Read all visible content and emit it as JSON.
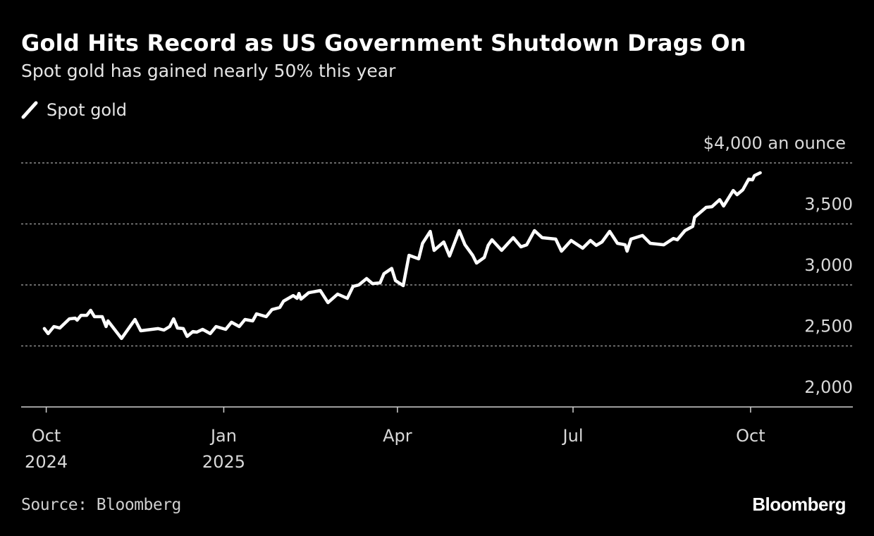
{
  "header": {
    "title": "Gold Hits Record as US Government Shutdown Drags On",
    "subtitle": "Spot gold has gained nearly 50% this year"
  },
  "footer": {
    "source": "Source: Bloomberg",
    "logo": "Bloomberg"
  },
  "colors": {
    "background": "#000000",
    "line": "#ffffff",
    "grid": "#8c8c8c",
    "text": "#d9d9d9"
  },
  "chart_data": {
    "type": "line",
    "title": "Gold Hits Record as US Government Shutdown Drags On",
    "subtitle": "Spot gold has gained nearly 50% this year",
    "xlabel": "",
    "ylabel": "",
    "y_unit_label": "$4,000 an ounce",
    "xlim": [
      "2024-09-18",
      "2025-11-23"
    ],
    "ylim": [
      2000,
      4000
    ],
    "grid": true,
    "legend": "top-left",
    "y_ticks": [
      {
        "value": 2000,
        "label": "2,000"
      },
      {
        "value": 2500,
        "label": "2,500"
      },
      {
        "value": 3000,
        "label": "3,000"
      },
      {
        "value": 3500,
        "label": "3,500"
      },
      {
        "value": 4000,
        "label": "$4,000 an ounce"
      }
    ],
    "x_ticks": [
      {
        "date": "2024-10-01",
        "label": "Oct",
        "sublabel": "2024"
      },
      {
        "date": "2025-01-01",
        "label": "Jan",
        "sublabel": "2025"
      },
      {
        "date": "2025-04-01",
        "label": "Apr",
        "sublabel": ""
      },
      {
        "date": "2025-07-01",
        "label": "Jul",
        "sublabel": ""
      },
      {
        "date": "2025-10-01",
        "label": "Oct",
        "sublabel": ""
      }
    ],
    "series": [
      {
        "name": "Spot gold",
        "points": [
          [
            "2024-09-30",
            2642
          ],
          [
            "2024-10-02",
            2601
          ],
          [
            "2024-10-05",
            2659
          ],
          [
            "2024-10-08",
            2647
          ],
          [
            "2024-10-13",
            2722
          ],
          [
            "2024-10-16",
            2728
          ],
          [
            "2024-10-17",
            2711
          ],
          [
            "2024-10-19",
            2751
          ],
          [
            "2024-10-22",
            2751
          ],
          [
            "2024-10-24",
            2792
          ],
          [
            "2024-10-26",
            2740
          ],
          [
            "2024-10-30",
            2740
          ],
          [
            "2024-11-01",
            2659
          ],
          [
            "2024-11-02",
            2705
          ],
          [
            "2024-11-09",
            2561
          ],
          [
            "2024-11-16",
            2717
          ],
          [
            "2024-11-19",
            2624
          ],
          [
            "2024-11-28",
            2642
          ],
          [
            "2024-12-01",
            2630
          ],
          [
            "2024-12-04",
            2659
          ],
          [
            "2024-12-06",
            2722
          ],
          [
            "2024-12-08",
            2647
          ],
          [
            "2024-12-11",
            2642
          ],
          [
            "2024-12-13",
            2578
          ],
          [
            "2024-12-16",
            2618
          ],
          [
            "2024-12-18",
            2613
          ],
          [
            "2024-12-21",
            2636
          ],
          [
            "2024-12-25",
            2601
          ],
          [
            "2024-12-28",
            2659
          ],
          [
            "2025-01-02",
            2636
          ],
          [
            "2025-01-05",
            2694
          ],
          [
            "2025-01-09",
            2659
          ],
          [
            "2025-01-12",
            2717
          ],
          [
            "2025-01-16",
            2705
          ],
          [
            "2025-01-18",
            2763
          ],
          [
            "2025-01-23",
            2740
          ],
          [
            "2025-01-26",
            2798
          ],
          [
            "2025-01-30",
            2815
          ],
          [
            "2025-02-01",
            2867
          ],
          [
            "2025-02-06",
            2913
          ],
          [
            "2025-02-08",
            2890
          ],
          [
            "2025-02-09",
            2930
          ],
          [
            "2025-02-10",
            2884
          ],
          [
            "2025-02-14",
            2936
          ],
          [
            "2025-02-20",
            2954
          ],
          [
            "2025-02-24",
            2855
          ],
          [
            "2025-03-01",
            2925
          ],
          [
            "2025-03-06",
            2890
          ],
          [
            "2025-03-09",
            2988
          ],
          [
            "2025-03-12",
            3000
          ],
          [
            "2025-03-16",
            3052
          ],
          [
            "2025-03-19",
            3011
          ],
          [
            "2025-03-23",
            3017
          ],
          [
            "2025-03-25",
            3092
          ],
          [
            "2025-03-29",
            3135
          ],
          [
            "2025-03-31",
            3035
          ],
          [
            "2025-04-04",
            2994
          ],
          [
            "2025-04-07",
            3243
          ],
          [
            "2025-04-12",
            3214
          ],
          [
            "2025-04-14",
            3341
          ],
          [
            "2025-04-18",
            3439
          ],
          [
            "2025-04-20",
            3283
          ],
          [
            "2025-04-25",
            3352
          ],
          [
            "2025-04-28",
            3237
          ],
          [
            "2025-05-03",
            3445
          ],
          [
            "2025-05-06",
            3329
          ],
          [
            "2025-05-10",
            3243
          ],
          [
            "2025-05-12",
            3179
          ],
          [
            "2025-05-16",
            3225
          ],
          [
            "2025-05-18",
            3324
          ],
          [
            "2025-05-20",
            3370
          ],
          [
            "2025-05-25",
            3283
          ],
          [
            "2025-05-31",
            3387
          ],
          [
            "2025-06-04",
            3312
          ],
          [
            "2025-06-07",
            3329
          ],
          [
            "2025-06-11",
            3445
          ],
          [
            "2025-06-15",
            3387
          ],
          [
            "2025-06-22",
            3376
          ],
          [
            "2025-06-25",
            3277
          ],
          [
            "2025-06-30",
            3364
          ],
          [
            "2025-07-06",
            3301
          ],
          [
            "2025-07-10",
            3364
          ],
          [
            "2025-07-13",
            3324
          ],
          [
            "2025-07-16",
            3352
          ],
          [
            "2025-07-20",
            3439
          ],
          [
            "2025-07-24",
            3341
          ],
          [
            "2025-07-28",
            3329
          ],
          [
            "2025-07-29",
            3277
          ],
          [
            "2025-07-31",
            3376
          ],
          [
            "2025-08-06",
            3405
          ],
          [
            "2025-08-10",
            3341
          ],
          [
            "2025-08-17",
            3329
          ],
          [
            "2025-08-22",
            3381
          ],
          [
            "2025-08-24",
            3370
          ],
          [
            "2025-08-28",
            3445
          ],
          [
            "2025-09-01",
            3480
          ],
          [
            "2025-09-02",
            3555
          ],
          [
            "2025-09-08",
            3636
          ],
          [
            "2025-09-11",
            3641
          ],
          [
            "2025-09-15",
            3699
          ],
          [
            "2025-09-17",
            3647
          ],
          [
            "2025-09-22",
            3774
          ],
          [
            "2025-09-24",
            3740
          ],
          [
            "2025-09-27",
            3780
          ],
          [
            "2025-09-30",
            3867
          ],
          [
            "2025-10-02",
            3861
          ],
          [
            "2025-10-03",
            3896
          ],
          [
            "2025-10-06",
            3919
          ]
        ]
      }
    ]
  }
}
